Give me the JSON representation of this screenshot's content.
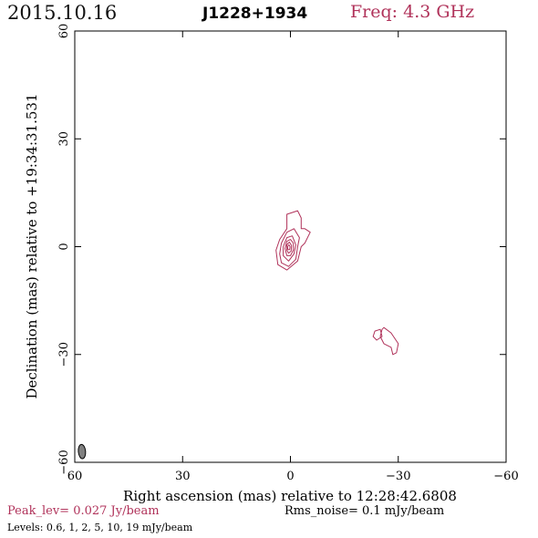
{
  "header": {
    "date": "2015.10.16",
    "source": "J1228+1934",
    "frequency": "Freq: 4.3 GHz"
  },
  "footer": {
    "peak": "Peak_lev=  0.027 Jy/beam",
    "rms": "Rms_noise=  0.1 mJy/beam",
    "levels": "Levels: 0.6,   1,   2,   5,  10,  19 mJy/beam"
  },
  "colors": {
    "contour": "#b0325a",
    "beam": "#808080",
    "axis": "#000000",
    "header_freq": "#b0325a"
  },
  "chart_data": {
    "type": "contour",
    "xlabel": "Right ascension (mas) relative to 12:28:42.6808",
    "ylabel": "Declination (mas) relative to +19:34:31.531",
    "xlim": [
      60,
      -60
    ],
    "ylim": [
      -60,
      60
    ],
    "xticks": [
      60,
      30,
      0,
      -30,
      -60
    ],
    "yticks": [
      60,
      30,
      0,
      -30,
      -60
    ],
    "xtick_labels": [
      "60",
      "30",
      "0",
      "−30",
      "−60"
    ],
    "ytick_labels": [
      "60",
      "30",
      "0",
      "−30",
      "−60"
    ],
    "grid": false,
    "contour_levels_mJy": [
      0.6,
      1,
      2,
      5,
      10,
      19
    ],
    "peak_Jy_per_beam": 0.027,
    "rms_mJy_per_beam": 0.1,
    "components": [
      {
        "name_hint": "core",
        "contours": [
          [
            [
              -2,
              10
            ],
            [
              1,
              9
            ],
            [
              1,
              5
            ],
            [
              3,
              2
            ],
            [
              4,
              -1
            ],
            [
              3.5,
              -5
            ],
            [
              1,
              -6.5
            ],
            [
              -2,
              -4
            ],
            [
              -3,
              0
            ],
            [
              -4,
              1
            ],
            [
              -5,
              3
            ],
            [
              -5.5,
              4
            ],
            [
              -4,
              5
            ],
            [
              -3,
              5
            ],
            [
              -3,
              8
            ]
          ],
          [
            [
              -1,
              5
            ],
            [
              1,
              4
            ],
            [
              2.5,
              1
            ],
            [
              3,
              -2
            ],
            [
              2.5,
              -4.5
            ],
            [
              0.5,
              -5.5
            ],
            [
              -1.5,
              -3.5
            ],
            [
              -2,
              0
            ],
            [
              -2.5,
              2.5
            ]
          ],
          [
            [
              -0.5,
              3
            ],
            [
              1,
              2.5
            ],
            [
              2,
              0
            ],
            [
              2,
              -2.5
            ],
            [
              0.5,
              -4
            ],
            [
              -1,
              -2
            ],
            [
              -1.5,
              0.5
            ]
          ],
          [
            [
              0,
              2
            ],
            [
              1,
              1.5
            ],
            [
              1.5,
              -0.5
            ],
            [
              1,
              -2.5
            ],
            [
              0,
              -2.5
            ],
            [
              -0.8,
              -1
            ],
            [
              -0.8,
              1
            ]
          ],
          [
            [
              0.3,
              1.3
            ],
            [
              1,
              0.5
            ],
            [
              1,
              -1
            ],
            [
              0.5,
              -1.8
            ],
            [
              -0.2,
              -1.2
            ],
            [
              -0.3,
              0.3
            ]
          ],
          [
            [
              0.4,
              0.5
            ],
            [
              0.8,
              0
            ],
            [
              0.7,
              -0.8
            ],
            [
              0.2,
              -0.8
            ],
            [
              0.1,
              0
            ]
          ]
        ]
      },
      {
        "name_hint": "blob-a",
        "contours": [
          [
            [
              -23.5,
              -23.5
            ],
            [
              -25,
              -23
            ],
            [
              -25.5,
              -25
            ],
            [
              -24,
              -26
            ],
            [
              -23,
              -25
            ]
          ]
        ]
      },
      {
        "name_hint": "blob-b",
        "contours": [
          [
            [
              -26,
              -22.5
            ],
            [
              -28,
              -24
            ],
            [
              -30,
              -27
            ],
            [
              -29.5,
              -29.5
            ],
            [
              -28.5,
              -30
            ],
            [
              -28,
              -28
            ],
            [
              -26,
              -27
            ],
            [
              -25,
              -25
            ],
            [
              -25.5,
              -23
            ]
          ]
        ]
      }
    ],
    "beam": {
      "center": [
        58,
        -57
      ],
      "major_mas": 4,
      "minor_mas": 2,
      "pa_deg": 5
    }
  }
}
